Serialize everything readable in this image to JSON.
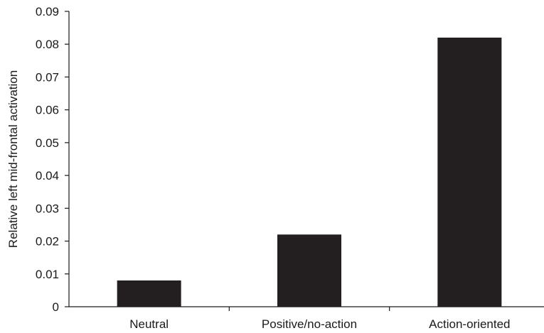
{
  "chart_data": {
    "type": "bar",
    "title": "",
    "xlabel": "",
    "ylabel": "Relative left mid-frontal activation",
    "categories": [
      "Neutral",
      "Positive/no-action",
      "Action-oriented"
    ],
    "values": [
      0.008,
      0.022,
      0.082
    ],
    "ylim": [
      0,
      0.09
    ],
    "yticks": [
      "0",
      "0.01",
      "0.02",
      "0.03",
      "0.04",
      "0.05",
      "0.06",
      "0.07",
      "0.08",
      "0.09"
    ],
    "grid": false,
    "legend": "none",
    "bar_color": "#231f20"
  }
}
